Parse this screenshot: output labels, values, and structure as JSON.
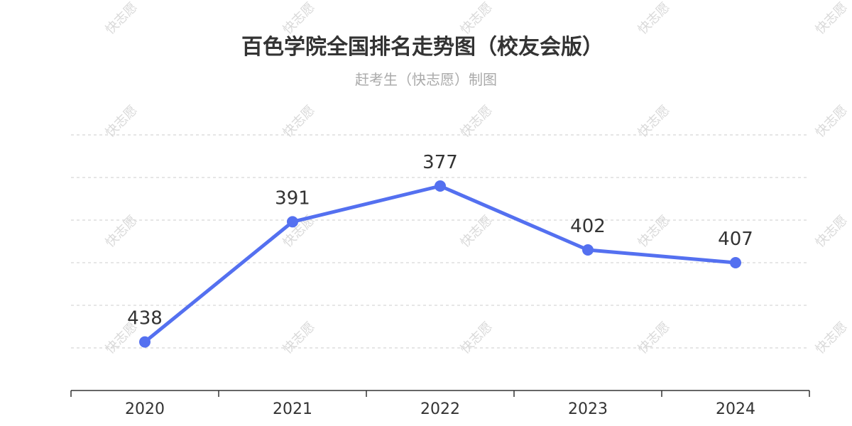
{
  "chart_data": {
    "type": "line",
    "title": "百色学院全国排名走势图（校友会版）",
    "subtitle": "赶考生（快志愿）制图",
    "categories": [
      "2020",
      "2021",
      "2022",
      "2023",
      "2024"
    ],
    "series": [
      {
        "values": [
          438,
          391,
          377,
          402,
          407
        ]
      }
    ],
    "y_axis": {
      "inverted": true,
      "range": [
        357,
        457
      ],
      "labels_visible": false
    },
    "grid": true,
    "grid_style": "dashed",
    "watermark_text": "快志愿",
    "colors": {
      "line": "#5470f0",
      "grid": "#cccccc",
      "axis": "#333333",
      "watermark": "#d9d9d9"
    }
  }
}
